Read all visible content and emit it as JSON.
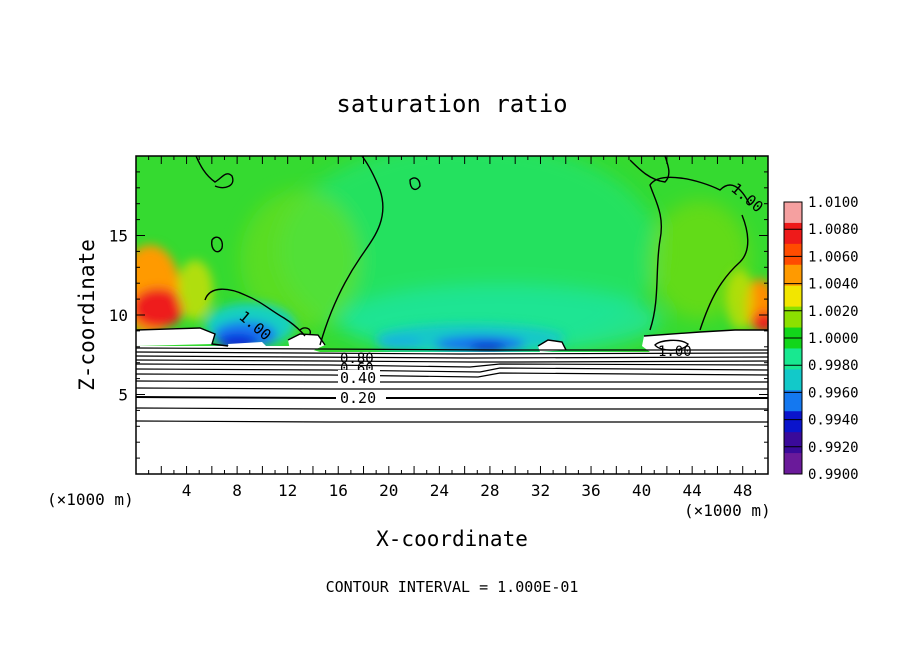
{
  "chart_data": {
    "type": "heatmap",
    "title": "saturation ratio",
    "xlabel": "X-coordinate",
    "ylabel": "Z-coordinate",
    "x_unit": "(×1000 m)",
    "x_unit_right": "(×1000 m)",
    "xlim": [
      0,
      50
    ],
    "ylim": [
      0,
      20
    ],
    "x_ticks": [
      "4",
      "8",
      "12",
      "16",
      "20",
      "24",
      "28",
      "32",
      "36",
      "40",
      "44",
      "48"
    ],
    "y_ticks": [
      "5",
      "10",
      "15"
    ],
    "colorbar": {
      "min": 0.99,
      "max": 1.01,
      "labels": [
        "1.0100",
        "1.0080",
        "1.0060",
        "1.0040",
        "1.0020",
        "1.0000",
        "0.9980",
        "0.9960",
        "0.9940",
        "0.9920",
        "0.9900"
      ],
      "colors": [
        "#f5a0a0",
        "#ee1a1a",
        "#ff4c00",
        "#ff9a00",
        "#f2e600",
        "#8ce000",
        "#12d61a",
        "#18e890",
        "#12c9c9",
        "#1478f0",
        "#0a14cc",
        "#3a0a9a",
        "#6a1a9a"
      ]
    },
    "contour_labels": [
      "1.00",
      "1.00",
      "1.00",
      "0.80",
      "0.60",
      "0.40",
      "0.20"
    ],
    "contour_interval": "CONTOUR INTERVAL = 1.000E-01",
    "notes": "Field ≈1.000 (green) above cloud-base near z≈8; supersaturated (red/orange, ~1.006) at left and right edges near z 9–12; subsaturated (blue, ~0.994) near x 7–12 and 24–30 just above z≈8; dense sub-unity contours (0.2–0.9) below z≈8."
  }
}
